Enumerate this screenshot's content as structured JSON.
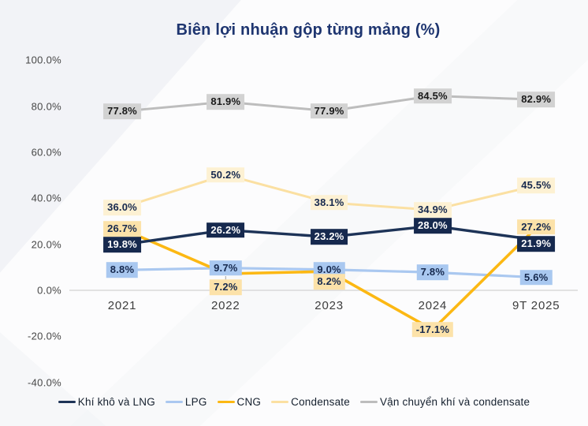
{
  "chart_data": {
    "type": "line",
    "title": "Biên lợi nhuận gộp từng mảng (%)",
    "categories": [
      "2021",
      "2022",
      "2023",
      "2024",
      "9T 2025"
    ],
    "y_axis": {
      "ticks": [
        "100.0%",
        "80.0%",
        "60.0%",
        "40.0%",
        "20.0%",
        "0.0%",
        "-20.0%",
        "-40.0%"
      ],
      "tick_values": [
        100,
        80,
        60,
        40,
        20,
        0,
        -20,
        -40
      ],
      "range": [
        -40,
        100
      ],
      "grid": "off",
      "zero_axis_color": "#d9d9d9"
    },
    "legend_position": "bottom",
    "series": [
      {
        "name": "Khí khô và LNG",
        "line_color": "#1d3357",
        "label_bg": "#16294e",
        "label_text_color": "#ffffff",
        "line_width": 3.4,
        "values": [
          19.8,
          26.2,
          23.2,
          28.0,
          21.9
        ],
        "labels": [
          "19.8%",
          "26.2%",
          "23.2%",
          "28.0%",
          "21.9%"
        ],
        "label_dy": [
          0,
          0,
          0,
          0,
          5
        ]
      },
      {
        "name": "LPG",
        "line_color": "#aac8f0",
        "label_bg": "#a9c8f0",
        "label_text_color": "#16294e",
        "line_width": 3.2,
        "values": [
          8.8,
          9.7,
          9.0,
          7.8,
          5.6
        ],
        "labels": [
          "8.8%",
          "9.7%",
          "9.0%",
          "7.8%",
          "5.6%"
        ],
        "label_dy": [
          0,
          0,
          0,
          0,
          0
        ]
      },
      {
        "name": "CNG",
        "line_color": "#fcb813",
        "label_bg": "#fce2a9",
        "label_text_color": "#16294e",
        "line_width": 3.6,
        "values": [
          26.7,
          7.2,
          8.2,
          -17.1,
          27.2
        ],
        "labels": [
          "26.7%",
          "7.2%",
          "8.2%",
          "-17.1%",
          "27.2%"
        ],
        "label_dy": [
          0,
          17,
          13,
          0,
          -1
        ],
        "leader_points": [
          1
        ]
      },
      {
        "name": "Condensate",
        "line_color": "#fbe0a2",
        "label_bg": "#fdf1d3",
        "label_text_color": "#16294e",
        "line_width": 3.0,
        "values": [
          36.0,
          50.2,
          38.1,
          34.9,
          45.5
        ],
        "labels": [
          "36.0%",
          "50.2%",
          "38.1%",
          "34.9%",
          "45.5%"
        ],
        "label_dy": [
          0,
          0,
          0,
          0,
          0
        ]
      },
      {
        "name": "Vận chuyển khí và condensate",
        "line_color": "#bdbdbd",
        "label_bg": "#d2d2d2",
        "label_text_color": "#1a1a1a",
        "line_width": 3.0,
        "values": [
          77.8,
          81.9,
          77.9,
          84.5,
          82.9
        ],
        "labels": [
          "77.8%",
          "81.9%",
          "77.9%",
          "84.5%",
          "82.9%"
        ],
        "label_dy": [
          0,
          0,
          0,
          0,
          0
        ]
      }
    ],
    "draw_order": [
      4,
      3,
      1,
      2,
      0
    ]
  }
}
